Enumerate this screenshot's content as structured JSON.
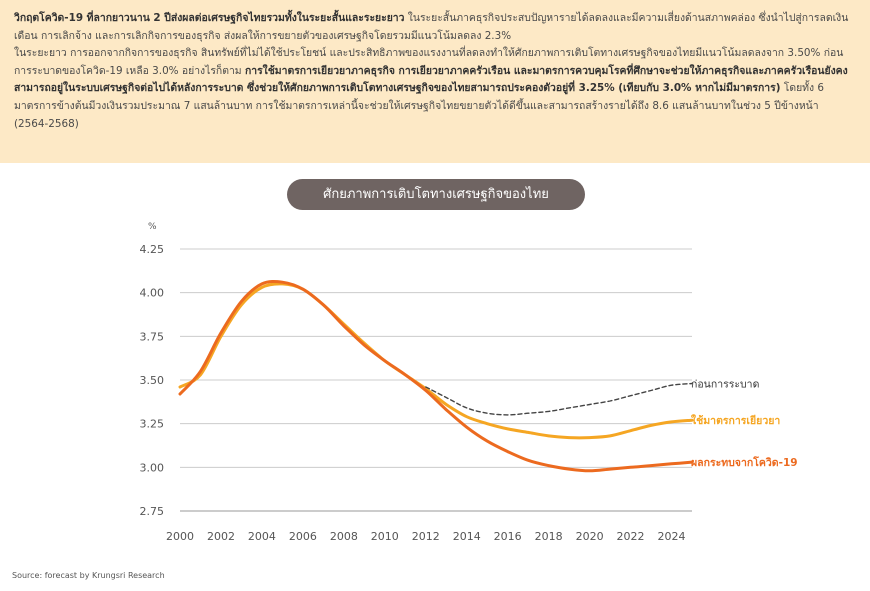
{
  "intro": {
    "p1_bold": "วิกฤตโควิด-19 ที่ลากยาวนาน 2 ปีส่งผลต่อเศรษฐกิจไทยรวมทั้งในระยะสั้นและระยะยาว",
    "p1_rest": " ในระยะสั้นภาคธุรกิจประสบปัญหารายได้ลดลงและมีความเสี่ยงด้านสภาพคล่อง ซึ่งนำไปสู่การลดเงินเดือน การเลิกจ้าง และการเลิกกิจการของธุรกิจ ส่งผลให้การขยายตัวของเศรษฐกิจโดยรวมมีแนวโน้มลดลง 2.3%",
    "p2_a": "ในระยะยาว การออกจากกิจการของธุรกิจ สินทรัพย์ที่ไม่ได้ใช้ประโยชน์ และประสิทธิภาพของแรงงานที่ลดลงทำให้ศักยภาพการเติบโตทางเศรษฐกิจของไทยมีแนวโน้มลดลงจาก 3.50% ก่อนการระบาดของโควิด-19 เหลือ 3.0% อย่างไรก็ตาม ",
    "p2_bold": "การใช้มาตรการเยียวยาภาคธุรกิจ การเยียวยาภาคครัวเรือน และมาตรการควบคุมโรคที่ศึกษาจะช่วยให้ภาคธุรกิจและภาคครัวเรือนยังคงสามารถอยู่ในระบบเศรษฐกิจต่อไปได้หลังการระบาด ซึ่งช่วยให้ศักยภาพการเติบโตทางเศรษฐกิจของไทยสามารถประคองตัวอยู่ที่ 3.25% (เทียบกับ 3.0% หากไม่มีมาตรการ)",
    "p2_rest": " โดยทั้ง 6 มาตรการข้างต้นมีวงเงินรวมประมาณ 7 แสนล้านบาท การใช้มาตรการเหล่านี้จะช่วยให้เศรษฐกิจไทยขยายตัวได้ดีขึ้นและสามารถสร้างรายได้ถึง 8.6 แสนล้านบาทในช่วง 5 ปีข้างหน้า (2564-2568)"
  },
  "source": "Source: forecast by Krungsri Research",
  "colors": {
    "background_band": "#fde9c6",
    "pill": "#6f6462",
    "pre": "#444444",
    "remedy": "#f5a623",
    "covid": "#ec6a1f",
    "grid": "#cccccc"
  },
  "chart_data": {
    "type": "line",
    "title": "ศักยภาพการเติบโตทางเศรษฐกิจของไทย",
    "ylabel": "%",
    "xlabel": "",
    "ylim": [
      2.75,
      4.25
    ],
    "xlim": [
      2000,
      2025
    ],
    "yticks": [
      "2.75",
      "3.00",
      "3.25",
      "3.50",
      "3.75",
      "4.00",
      "4.25"
    ],
    "xticks": [
      "2000",
      "2002",
      "2004",
      "2006",
      "2008",
      "2010",
      "2012",
      "2014",
      "2016",
      "2018",
      "2020",
      "2022",
      "2024"
    ],
    "grid": "horizontal",
    "legend": "direct labels at right end of lines",
    "series": [
      {
        "name": "ก่อนการระบาด",
        "color": "#444444",
        "style": "dashed",
        "x": [
          2012,
          2013,
          2014,
          2015,
          2016,
          2017,
          2018,
          2019,
          2020,
          2021,
          2022,
          2023,
          2024,
          2025
        ],
        "y": [
          3.46,
          3.4,
          3.34,
          3.31,
          3.3,
          3.31,
          3.32,
          3.34,
          3.36,
          3.38,
          3.41,
          3.44,
          3.47,
          3.48
        ]
      },
      {
        "name": "ใช้มาตรการเยียวยา",
        "color": "#f5a623",
        "style": "solid",
        "x": [
          2000,
          2001,
          2002,
          2003,
          2004,
          2005,
          2006,
          2007,
          2008,
          2009,
          2010,
          2011,
          2012,
          2013,
          2014,
          2015,
          2016,
          2017,
          2018,
          2019,
          2020,
          2021,
          2022,
          2023,
          2024,
          2025
        ],
        "y": [
          3.46,
          3.53,
          3.75,
          3.93,
          4.03,
          4.05,
          4.02,
          3.93,
          3.82,
          3.71,
          3.61,
          3.53,
          3.45,
          3.36,
          3.29,
          3.25,
          3.22,
          3.2,
          3.18,
          3.17,
          3.17,
          3.18,
          3.21,
          3.24,
          3.26,
          3.27
        ]
      },
      {
        "name": "ผลกระทบจากโควิด-19",
        "color": "#ec6a1f",
        "style": "solid",
        "x": [
          2000,
          2001,
          2002,
          2003,
          2004,
          2005,
          2006,
          2007,
          2008,
          2009,
          2010,
          2011,
          2012,
          2013,
          2014,
          2015,
          2016,
          2017,
          2018,
          2019,
          2020,
          2021,
          2022,
          2023,
          2024,
          2025
        ],
        "y": [
          3.42,
          3.55,
          3.77,
          3.95,
          4.05,
          4.06,
          4.02,
          3.93,
          3.81,
          3.7,
          3.61,
          3.53,
          3.44,
          3.33,
          3.23,
          3.15,
          3.09,
          3.04,
          3.01,
          2.99,
          2.98,
          2.99,
          3.0,
          3.01,
          3.02,
          3.03
        ]
      }
    ]
  }
}
